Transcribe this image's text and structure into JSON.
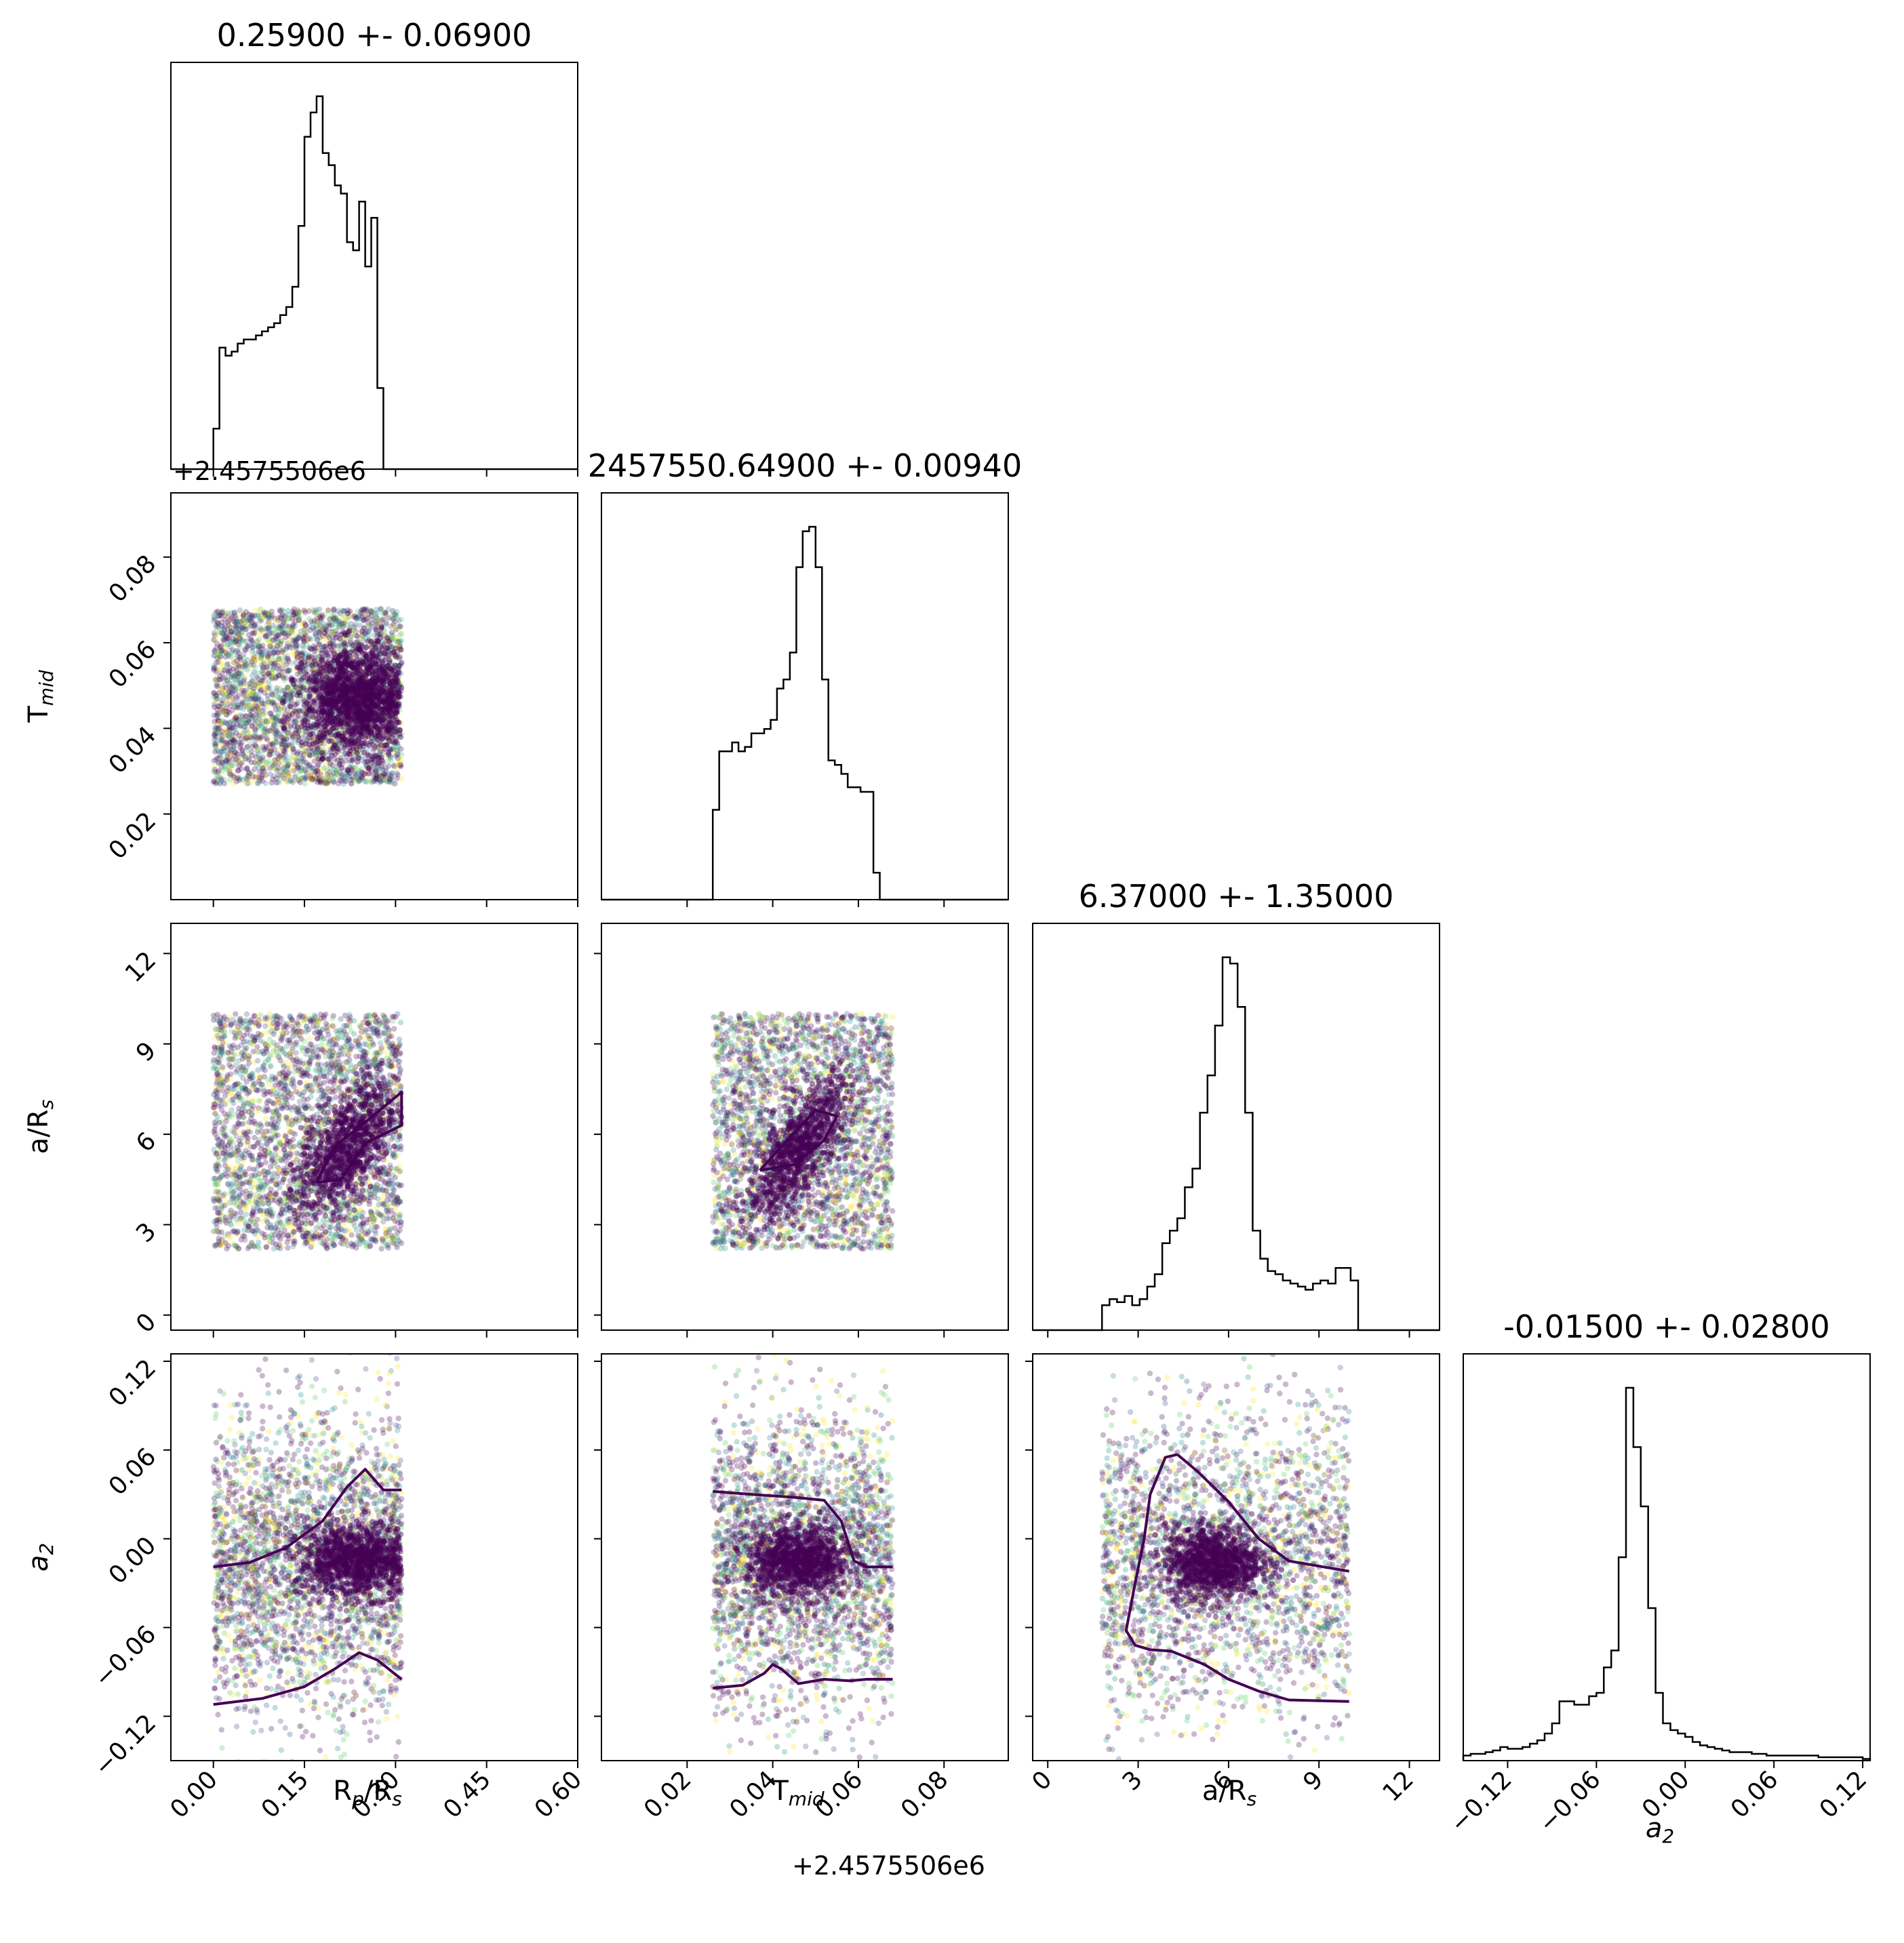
{
  "chart_data": {
    "type": "corner",
    "title": "",
    "parameters": [
      {
        "key": "rp",
        "label": "R",
        "sub": "p",
        "label_tail": "/R",
        "tail_sub": "s",
        "range": [
          -0.07,
          0.6
        ],
        "ticks": [
          0.0,
          0.15,
          0.3,
          0.45,
          0.6
        ],
        "tick_labels": [
          "0.00",
          "0.15",
          "0.30",
          "0.45",
          "0.60"
        ]
      },
      {
        "key": "tmid",
        "label": "T",
        "sub": "mid",
        "label_tail": "",
        "tail_sub": "",
        "range": [
          0.0,
          0.095
        ],
        "ticks": [
          0.02,
          0.04,
          0.06,
          0.08
        ],
        "tick_labels": [
          "0.02",
          "0.04",
          "0.06",
          "0.08"
        ],
        "offset_label": "+2.4575506e6"
      },
      {
        "key": "ars",
        "label": "a/R",
        "sub": "s",
        "label_tail": "",
        "tail_sub": "",
        "range": [
          -0.5,
          13.0
        ],
        "ticks": [
          0,
          3,
          6,
          9,
          12
        ],
        "tick_labels": [
          "0",
          "3",
          "6",
          "9",
          "12"
        ]
      },
      {
        "key": "a2",
        "label": "a",
        "sub": "2",
        "label_tail": "",
        "tail_sub": "",
        "italic": true,
        "range": [
          -0.15,
          0.125
        ],
        "ticks": [
          -0.12,
          -0.06,
          0.0,
          0.06,
          0.12
        ],
        "tick_labels": [
          "−0.12",
          "−0.06",
          "0.00",
          "0.06",
          "0.12"
        ]
      }
    ],
    "titles": [
      "0.25900 +- 0.06900",
      "2457550.64900 +- 0.00940",
      "6.37000 +- 1.35000",
      "-0.01500 +- 0.02800"
    ],
    "offset_labels": {
      "tmid_y": "+2.4575506e6",
      "tmid_x": "+2.4575506e6"
    },
    "histograms": [
      {
        "param": "rp",
        "bin_start": 0.0,
        "bin_width": 0.01,
        "counts": [
          10,
          30,
          28,
          29,
          31,
          32,
          32,
          33,
          34,
          35,
          36,
          38,
          40,
          45,
          60,
          82,
          88,
          92,
          78,
          75,
          70,
          68,
          56,
          54,
          66,
          50,
          62,
          20
        ]
      },
      {
        "param": "tmid",
        "bin_start": 0.026,
        "bin_width": 0.0015,
        "counts": [
          20,
          33,
          33,
          35,
          33,
          34,
          37,
          37,
          38,
          40,
          47,
          49,
          55,
          74,
          82,
          83,
          74,
          49,
          31,
          30,
          28,
          25,
          25,
          24,
          24,
          6,
          0
        ]
      },
      {
        "param": "ars",
        "bin_start": 1.8,
        "bin_width": 0.25,
        "counts": [
          8,
          10,
          9,
          11,
          8,
          10,
          14,
          18,
          28,
          32,
          36,
          46,
          52,
          70,
          82,
          98,
          120,
          118,
          104,
          70,
          32,
          23,
          19,
          18,
          16,
          15,
          14,
          13,
          15,
          16,
          15,
          20,
          20,
          16
        ]
      },
      {
        "param": "a2",
        "bin_start": -0.15,
        "bin_width": 0.005,
        "counts": [
          3,
          4,
          4,
          5,
          6,
          8,
          7,
          7,
          8,
          10,
          12,
          16,
          22,
          35,
          35,
          33,
          33,
          38,
          40,
          55,
          65,
          120,
          220,
          185,
          150,
          90,
          40,
          22,
          18,
          16,
          14,
          11,
          9,
          8,
          7,
          6,
          5,
          5,
          5,
          4,
          4,
          3,
          3,
          3,
          3,
          3,
          3,
          3,
          2,
          2,
          2,
          2,
          2,
          2,
          1
        ]
      }
    ],
    "scatter_panels": [
      {
        "x": "rp",
        "y": "tmid",
        "n": 3200,
        "x_range": [
          0.0,
          0.31
        ],
        "y_range": [
          0.027,
          0.068
        ],
        "cluster": {
          "x": 0.24,
          "y": 0.047,
          "sx": 0.045,
          "sy": 0.006,
          "n": 1500
        },
        "contours": []
      },
      {
        "x": "rp",
        "y": "ars",
        "n": 3000,
        "x_range": [
          0.0,
          0.31
        ],
        "y_range": [
          2.2,
          10.0
        ],
        "cluster": {
          "x": 0.22,
          "y": 5.6,
          "sx": 0.04,
          "sy": 0.9,
          "n": 900,
          "slope": 15
        },
        "contours": [
          [
            [
              0.17,
              4.4
            ],
            [
              0.2,
              5.6
            ],
            [
              0.25,
              6.4
            ],
            [
              0.31,
              7.4
            ],
            [
              0.31,
              6.3
            ],
            [
              0.25,
              5.7
            ],
            [
              0.21,
              4.5
            ],
            [
              0.17,
              4.4
            ]
          ]
        ]
      },
      {
        "x": "tmid",
        "y": "ars",
        "n": 2800,
        "x_range": [
          0.026,
          0.068
        ],
        "y_range": [
          2.2,
          10.0
        ],
        "cluster": {
          "x": 0.046,
          "y": 5.5,
          "sx": 0.006,
          "sy": 0.8,
          "n": 900,
          "slope": 150
        },
        "contours": [
          [
            [
              0.037,
              4.8
            ],
            [
              0.044,
              5.9
            ],
            [
              0.05,
              6.8
            ],
            [
              0.055,
              6.6
            ],
            [
              0.052,
              5.8
            ],
            [
              0.045,
              5.0
            ],
            [
              0.037,
              4.8
            ]
          ]
        ]
      },
      {
        "x": "rp",
        "y": "a2",
        "n": 2800,
        "x_range": [
          0.0,
          0.31
        ],
        "y_range": [
          -0.15,
          0.125
        ],
        "cluster": {
          "x": 0.24,
          "y": -0.015,
          "sx": 0.05,
          "sy": 0.012,
          "n": 1200
        },
        "contours": [
          [
            [
              0.0,
              -0.019
            ],
            [
              0.06,
              -0.016
            ],
            [
              0.12,
              -0.006
            ],
            [
              0.18,
              0.012
            ],
            [
              0.22,
              0.035
            ],
            [
              0.25,
              0.047
            ],
            [
              0.28,
              0.033
            ],
            [
              0.31,
              0.033
            ]
          ],
          [
            [
              0.0,
              -0.112
            ],
            [
              0.08,
              -0.108
            ],
            [
              0.15,
              -0.1
            ],
            [
              0.2,
              -0.088
            ],
            [
              0.24,
              -0.077
            ],
            [
              0.27,
              -0.082
            ],
            [
              0.31,
              -0.095
            ]
          ]
        ]
      },
      {
        "x": "tmid",
        "y": "a2",
        "n": 2700,
        "x_range": [
          0.026,
          0.068
        ],
        "y_range": [
          -0.15,
          0.125
        ],
        "cluster": {
          "x": 0.046,
          "y": -0.015,
          "sx": 0.006,
          "sy": 0.012,
          "n": 1100
        },
        "contours": [
          [
            [
              0.026,
              0.032
            ],
            [
              0.035,
              0.03
            ],
            [
              0.045,
              0.028
            ],
            [
              0.052,
              0.026
            ],
            [
              0.056,
              0.012
            ],
            [
              0.059,
              -0.015
            ],
            [
              0.062,
              -0.019
            ],
            [
              0.068,
              -0.019
            ]
          ],
          [
            [
              0.026,
              -0.101
            ],
            [
              0.033,
              -0.099
            ],
            [
              0.038,
              -0.091
            ],
            [
              0.04,
              -0.085
            ],
            [
              0.042,
              -0.088
            ],
            [
              0.046,
              -0.098
            ],
            [
              0.052,
              -0.095
            ],
            [
              0.058,
              -0.096
            ],
            [
              0.062,
              -0.095
            ],
            [
              0.068,
              -0.095
            ]
          ]
        ]
      },
      {
        "x": "ars",
        "y": "a2",
        "n": 2700,
        "x_range": [
          1.8,
          10.0
        ],
        "y_range": [
          -0.15,
          0.125
        ],
        "cluster": {
          "x": 5.5,
          "y": -0.016,
          "sx": 0.8,
          "sy": 0.012,
          "n": 1100
        },
        "contours": [
          [
            [
              4.3,
              0.057
            ],
            [
              3.9,
              0.055
            ],
            [
              3.4,
              0.03
            ],
            [
              3.2,
              0.0
            ],
            [
              2.9,
              -0.03
            ],
            [
              2.6,
              -0.062
            ],
            [
              2.9,
              -0.072
            ],
            [
              3.4,
              -0.075
            ],
            [
              4.1,
              -0.076
            ],
            [
              5.2,
              -0.085
            ],
            [
              6.0,
              -0.095
            ],
            [
              7.0,
              -0.103
            ],
            [
              8.0,
              -0.109
            ],
            [
              10.0,
              -0.11
            ]
          ],
          [
            [
              4.3,
              0.057
            ],
            [
              5.0,
              0.045
            ],
            [
              6.0,
              0.025
            ],
            [
              7.0,
              0.0
            ],
            [
              8.0,
              -0.015
            ],
            [
              10.0,
              -0.022
            ]
          ]
        ]
      }
    ]
  }
}
